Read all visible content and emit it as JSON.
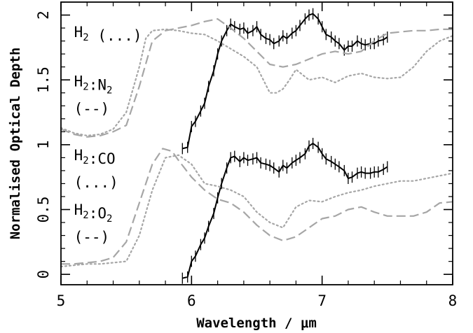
{
  "chart_data": {
    "type": "line",
    "title": "",
    "xlabel": "Wavelength / μm",
    "ylabel": "Normalised Optical Depth",
    "xlim": [
      5,
      8
    ],
    "ylim": [
      -0.08,
      2.1
    ],
    "xticks": [
      5,
      6,
      7,
      8
    ],
    "yticks": [
      0,
      0.5,
      1,
      1.5,
      2
    ],
    "grid": false,
    "legend": "none",
    "annotations": [
      {
        "parts": [
          {
            "t": "H"
          },
          {
            "t": "2",
            "sub": true
          },
          {
            "t": " (...)"
          }
        ],
        "x": 5.1,
        "y": 1.83
      },
      {
        "parts": [
          {
            "t": "H"
          },
          {
            "t": "2",
            "sub": true
          },
          {
            "t": ":N"
          },
          {
            "t": "2",
            "sub": true
          }
        ],
        "x": 5.1,
        "y": 1.45
      },
      {
        "parts": [
          {
            "t": "(--)"
          }
        ],
        "x": 5.1,
        "y": 1.24
      },
      {
        "parts": [
          {
            "t": "H"
          },
          {
            "t": "2",
            "sub": true
          },
          {
            "t": ":CO"
          }
        ],
        "x": 5.1,
        "y": 0.88
      },
      {
        "parts": [
          {
            "t": "(...)"
          }
        ],
        "x": 5.1,
        "y": 0.67
      },
      {
        "parts": [
          {
            "t": "H"
          },
          {
            "t": "2",
            "sub": true
          },
          {
            "t": ":O"
          },
          {
            "t": "2",
            "sub": true
          }
        ],
        "x": 5.1,
        "y": 0.46
      },
      {
        "parts": [
          {
            "t": "(--)"
          }
        ],
        "x": 5.1,
        "y": 0.25
      }
    ],
    "series": [
      {
        "style": "solid",
        "color": "#000000",
        "error_bars": true,
        "x": [
          5.93,
          5.97,
          6.0,
          6.03,
          6.07,
          6.1,
          6.13,
          6.17,
          6.2,
          6.23,
          6.27,
          6.3,
          6.33,
          6.37,
          6.4,
          6.43,
          6.47,
          6.5,
          6.53,
          6.57,
          6.6,
          6.63,
          6.67,
          6.7,
          6.73,
          6.77,
          6.8,
          6.83,
          6.87,
          6.9,
          6.93,
          6.97,
          7.0,
          7.03,
          7.07,
          7.1,
          7.13,
          7.17,
          7.2,
          7.23,
          7.27,
          7.3,
          7.33,
          7.37,
          7.4,
          7.43,
          7.47,
          7.5
        ],
        "y": [
          0.97,
          0.98,
          1.14,
          1.18,
          1.26,
          1.32,
          1.45,
          1.57,
          1.7,
          1.8,
          1.88,
          1.93,
          1.91,
          1.89,
          1.9,
          1.86,
          1.88,
          1.91,
          1.85,
          1.82,
          1.81,
          1.78,
          1.8,
          1.84,
          1.82,
          1.86,
          1.88,
          1.92,
          1.97,
          2.0,
          2.01,
          1.97,
          1.91,
          1.85,
          1.83,
          1.8,
          1.78,
          1.73,
          1.76,
          1.76,
          1.8,
          1.78,
          1.77,
          1.78,
          1.78,
          1.8,
          1.81,
          1.83
        ]
      },
      {
        "style": "dashed",
        "color": "#a6a6a6",
        "x": [
          5.0,
          5.1,
          5.2,
          5.3,
          5.4,
          5.5,
          5.6,
          5.7,
          5.8,
          5.9,
          6.0,
          6.1,
          6.2,
          6.3,
          6.4,
          6.5,
          6.6,
          6.7,
          6.8,
          6.9,
          7.0,
          7.1,
          7.2,
          7.3,
          7.4,
          7.5,
          7.6,
          7.7,
          7.8,
          7.9,
          8.0
        ],
        "y": [
          1.12,
          1.08,
          1.06,
          1.07,
          1.1,
          1.15,
          1.45,
          1.8,
          1.88,
          1.9,
          1.92,
          1.95,
          1.97,
          1.9,
          1.82,
          1.72,
          1.62,
          1.6,
          1.62,
          1.66,
          1.7,
          1.72,
          1.7,
          1.72,
          1.8,
          1.86,
          1.87,
          1.88,
          1.88,
          1.89,
          1.89
        ]
      },
      {
        "style": "dotted",
        "color": "#a6a6a6",
        "x": [
          5.0,
          5.1,
          5.2,
          5.3,
          5.4,
          5.5,
          5.6,
          5.65,
          5.7,
          5.8,
          5.9,
          6.0,
          6.1,
          6.2,
          6.3,
          6.4,
          6.5,
          6.55,
          6.6,
          6.65,
          6.7,
          6.75,
          6.8,
          6.9,
          7.0,
          7.1,
          7.2,
          7.3,
          7.4,
          7.5,
          7.6,
          7.7,
          7.8,
          7.9,
          8.0
        ],
        "y": [
          1.13,
          1.09,
          1.07,
          1.08,
          1.12,
          1.25,
          1.6,
          1.82,
          1.88,
          1.89,
          1.88,
          1.86,
          1.85,
          1.8,
          1.74,
          1.68,
          1.6,
          1.5,
          1.4,
          1.4,
          1.43,
          1.5,
          1.58,
          1.5,
          1.52,
          1.48,
          1.53,
          1.55,
          1.52,
          1.51,
          1.52,
          1.6,
          1.72,
          1.8,
          1.84
        ]
      },
      {
        "style": "solid",
        "color": "#000000",
        "error_bars": true,
        "x": [
          5.93,
          5.97,
          6.0,
          6.03,
          6.07,
          6.1,
          6.13,
          6.17,
          6.2,
          6.23,
          6.27,
          6.3,
          6.33,
          6.37,
          6.4,
          6.43,
          6.47,
          6.5,
          6.53,
          6.57,
          6.6,
          6.63,
          6.67,
          6.7,
          6.73,
          6.77,
          6.8,
          6.83,
          6.87,
          6.9,
          6.93,
          6.97,
          7.0,
          7.03,
          7.07,
          7.1,
          7.13,
          7.17,
          7.2,
          7.23,
          7.27,
          7.3,
          7.33,
          7.37,
          7.4,
          7.43,
          7.47,
          7.5
        ],
        "y": [
          -0.03,
          -0.02,
          0.1,
          0.14,
          0.23,
          0.28,
          0.37,
          0.47,
          0.59,
          0.7,
          0.82,
          0.9,
          0.91,
          0.87,
          0.9,
          0.88,
          0.89,
          0.9,
          0.86,
          0.85,
          0.84,
          0.82,
          0.79,
          0.84,
          0.82,
          0.86,
          0.88,
          0.9,
          0.93,
          0.99,
          1.01,
          0.98,
          0.93,
          0.89,
          0.87,
          0.85,
          0.83,
          0.8,
          0.74,
          0.75,
          0.78,
          0.79,
          0.78,
          0.78,
          0.79,
          0.79,
          0.81,
          0.83
        ]
      },
      {
        "style": "dashed",
        "color": "#a6a6a6",
        "x": [
          5.0,
          5.1,
          5.2,
          5.3,
          5.4,
          5.5,
          5.6,
          5.7,
          5.78,
          5.85,
          5.9,
          6.0,
          6.1,
          6.2,
          6.3,
          6.4,
          6.5,
          6.6,
          6.7,
          6.8,
          6.9,
          7.0,
          7.1,
          7.2,
          7.3,
          7.4,
          7.5,
          7.6,
          7.7,
          7.8,
          7.9,
          8.0
        ],
        "y": [
          0.08,
          0.08,
          0.09,
          0.1,
          0.13,
          0.25,
          0.55,
          0.85,
          0.97,
          0.95,
          0.88,
          0.75,
          0.65,
          0.58,
          0.55,
          0.48,
          0.38,
          0.3,
          0.26,
          0.29,
          0.36,
          0.43,
          0.45,
          0.5,
          0.52,
          0.48,
          0.45,
          0.45,
          0.45,
          0.48,
          0.55,
          0.56
        ]
      },
      {
        "style": "dotted",
        "color": "#a6a6a6",
        "x": [
          5.0,
          5.1,
          5.2,
          5.3,
          5.4,
          5.5,
          5.6,
          5.7,
          5.8,
          5.9,
          6.0,
          6.1,
          6.2,
          6.3,
          6.4,
          6.5,
          6.6,
          6.7,
          6.8,
          6.9,
          7.0,
          7.1,
          7.2,
          7.3,
          7.4,
          7.5,
          7.6,
          7.7,
          7.8,
          7.9,
          8.0
        ],
        "y": [
          0.06,
          0.07,
          0.08,
          0.08,
          0.09,
          0.1,
          0.3,
          0.65,
          0.9,
          0.92,
          0.85,
          0.7,
          0.68,
          0.65,
          0.6,
          0.48,
          0.4,
          0.36,
          0.52,
          0.57,
          0.56,
          0.6,
          0.63,
          0.65,
          0.68,
          0.7,
          0.72,
          0.72,
          0.74,
          0.76,
          0.78
        ]
      }
    ]
  }
}
